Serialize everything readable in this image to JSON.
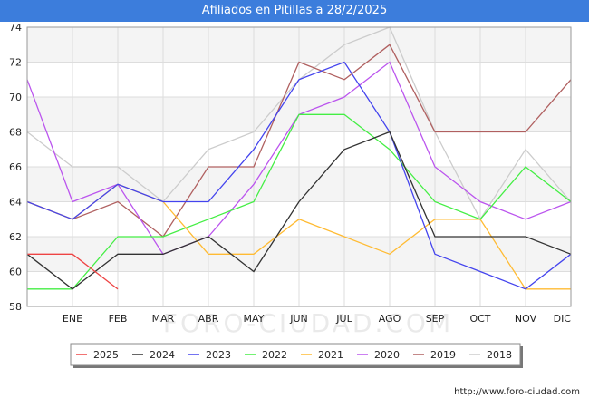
{
  "title": "Afiliados en Pitillas a 28/2/2025",
  "footer": "http://www.foro-ciudad.com",
  "watermark": "FORO-CIUDAD.COM",
  "chart_data": {
    "type": "line",
    "title": "Afiliados en Pitillas a 28/2/2025",
    "categories": [
      "",
      "ENE",
      "FEB",
      "MAR",
      "ABR",
      "MAY",
      "JUN",
      "JUL",
      "AGO",
      "SEP",
      "OCT",
      "NOV",
      "DIC"
    ],
    "y_ticks": [
      58,
      60,
      62,
      64,
      66,
      68,
      70,
      72,
      74
    ],
    "ylim": [
      58,
      74
    ],
    "grid": "horizontal and vertical",
    "band_fill": "alternating",
    "legend_position": "bottom",
    "series": [
      {
        "name": "2025",
        "color": "#ee4444",
        "values": [
          61,
          61,
          59,
          null,
          null,
          null,
          null,
          null,
          null,
          null,
          null,
          null,
          null
        ]
      },
      {
        "name": "2024",
        "color": "#333333",
        "values": [
          61,
          59,
          61,
          61,
          62,
          60,
          64,
          67,
          68,
          62,
          62,
          62,
          61
        ]
      },
      {
        "name": "2023",
        "color": "#4444ee",
        "values": [
          64,
          63,
          65,
          64,
          64,
          67,
          71,
          72,
          68,
          61,
          60,
          59,
          61
        ]
      },
      {
        "name": "2022",
        "color": "#44ee44",
        "values": [
          59,
          59,
          62,
          62,
          63,
          64,
          69,
          69,
          67,
          64,
          63,
          66,
          64
        ]
      },
      {
        "name": "2021",
        "color": "#ffbb33",
        "values": [
          64,
          63,
          65,
          64,
          61,
          61,
          63,
          62,
          61,
          63,
          63,
          59,
          59
        ]
      },
      {
        "name": "2020",
        "color": "#bb55ee",
        "values": [
          71,
          64,
          65,
          61,
          62,
          65,
          69,
          70,
          72,
          66,
          64,
          63,
          64
        ]
      },
      {
        "name": "2019",
        "color": "#b06060",
        "values": [
          64,
          63,
          64,
          62,
          66,
          66,
          72,
          71,
          73,
          68,
          68,
          68,
          71
        ]
      },
      {
        "name": "2018",
        "color": "#cccccc",
        "values": [
          68,
          66,
          66,
          64,
          67,
          68,
          71,
          73,
          74,
          68,
          63,
          67,
          64
        ]
      }
    ]
  }
}
